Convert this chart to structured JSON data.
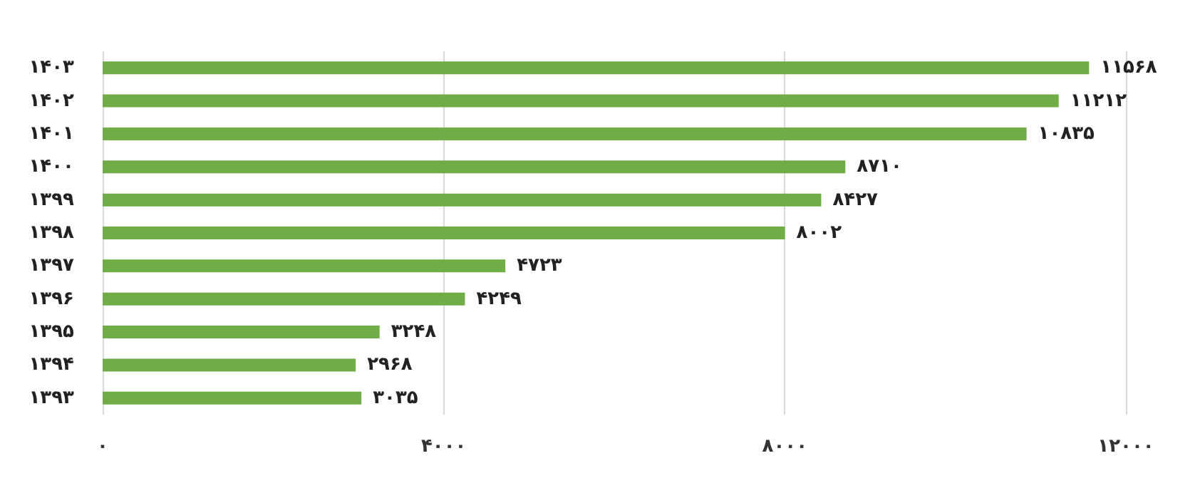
{
  "chart_data": {
    "type": "bar",
    "orientation": "horizontal",
    "categories": [
      "۱۴۰۳",
      "۱۴۰۲",
      "۱۴۰۱",
      "۱۴۰۰",
      "۱۳۹۹",
      "۱۳۹۸",
      "۱۳۹۷",
      "۱۳۹۶",
      "۱۳۹۵",
      "۱۳۹۴",
      "۱۳۹۳"
    ],
    "values": [
      11568,
      11212,
      10835,
      8710,
      8427,
      8002,
      4723,
      4249,
      3248,
      2968,
      3035
    ],
    "value_labels": [
      "۱۱۵۶۸",
      "۱۱۲۱۲",
      "۱۰۸۳۵",
      "۸۷۱۰",
      "۸۴۲۷",
      "۸۰۰۲",
      "۴۷۲۳",
      "۴۲۴۹",
      "۳۲۴۸",
      "۲۹۶۸",
      "۳۰۳۵"
    ],
    "color": "#70ad47",
    "xlim": [
      0,
      12000
    ],
    "xticks": [
      {
        "value": 0,
        "label": "۰"
      },
      {
        "value": 4000,
        "label": "۴۰۰۰"
      },
      {
        "value": 8000,
        "label": "۸۰۰۰"
      },
      {
        "value": 12000,
        "label": "۱۲۰۰۰"
      }
    ],
    "grid": "x"
  }
}
